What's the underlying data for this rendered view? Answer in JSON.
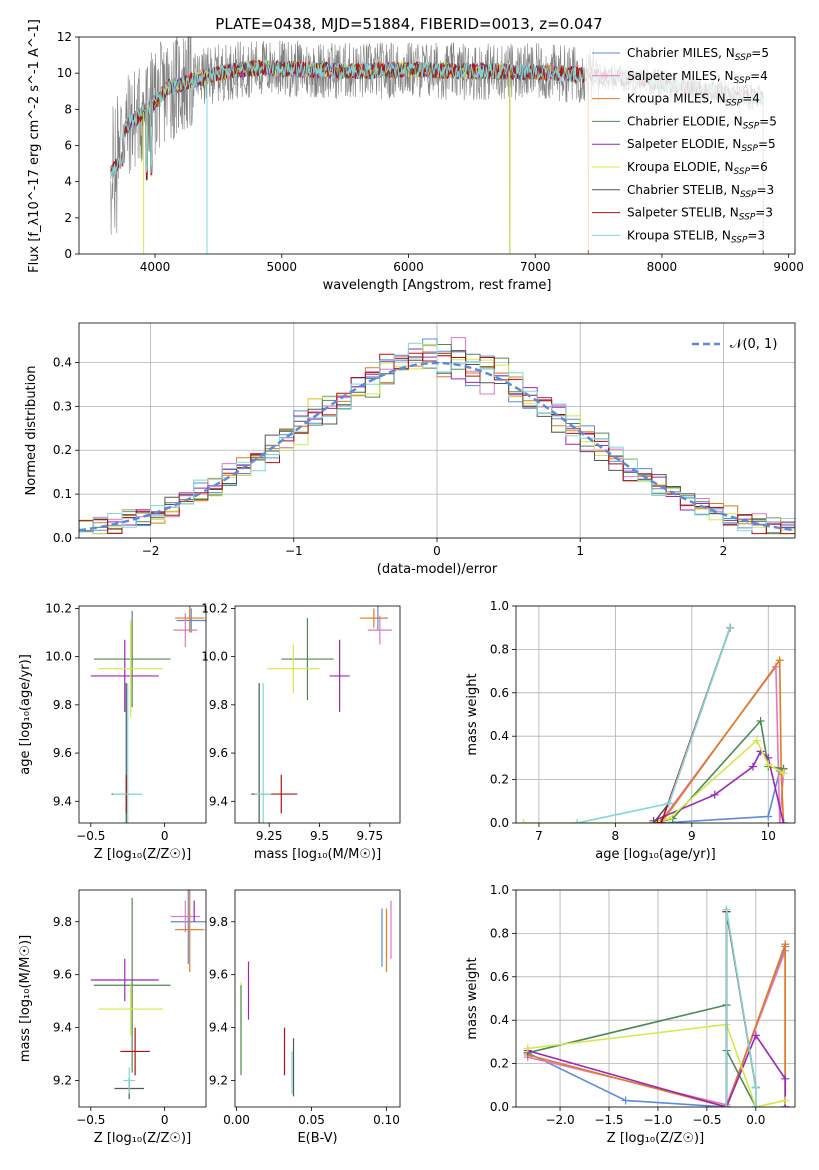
{
  "figure": {
    "title": "PLATE=0438, MJD=51884, FIBERID=0013, z=0.047"
  },
  "colors": {
    "Chabrier MILES": "#5b8bd9",
    "Salpeter MILES": "#e377c2",
    "Kroupa MILES": "#e07b21",
    "Chabrier ELODIE": "#4e8a57",
    "Salpeter ELODIE": "#9b27b8",
    "Kroupa ELODIE": "#d4e84a",
    "Chabrier STELIB": "#555555",
    "Salpeter STELIB": "#b01010",
    "Kroupa STELIB": "#7fd8d8"
  },
  "chart_data": [
    {
      "id": "spectrum",
      "type": "line",
      "title": "PLATE=0438, MJD=51884, FIBERID=0013, z=0.047",
      "xlabel": "wavelength [Angstrom, rest frame]",
      "ylabel": "Flux [f_λ10^-17 erg cm^-2 s^-1 A^-1]",
      "xlim": [
        3400,
        9050
      ],
      "ylim": [
        0,
        12
      ],
      "xticks": [
        4000,
        5000,
        6000,
        7000,
        8000,
        9000
      ],
      "yticks": [
        0,
        2,
        4,
        6,
        8,
        10,
        12
      ],
      "legend": {
        "placement": "top-right",
        "entries": [
          {
            "label": "Chabrier MILES, N",
            "sub": "SSP",
            "tail": "=5",
            "series": "Chabrier MILES"
          },
          {
            "label": "Salpeter MILES, N",
            "sub": "SSP",
            "tail": "=4",
            "series": "Salpeter MILES"
          },
          {
            "label": "Kroupa MILES, N",
            "sub": "SSP",
            "tail": "=4",
            "series": "Kroupa MILES"
          },
          {
            "label": "Chabrier ELODIE, N",
            "sub": "SSP",
            "tail": "=5",
            "series": "Chabrier ELODIE"
          },
          {
            "label": "Salpeter ELODIE, N",
            "sub": "SSP",
            "tail": "=5",
            "series": "Salpeter ELODIE"
          },
          {
            "label": "Kroupa ELODIE, N",
            "sub": "SSP",
            "tail": "=6",
            "series": "Kroupa ELODIE"
          },
          {
            "label": "Chabrier STELIB, N",
            "sub": "SSP",
            "tail": "=3",
            "series": "Chabrier STELIB"
          },
          {
            "label": "Salpeter STELIB, N",
            "sub": "SSP",
            "tail": "=3",
            "series": "Salpeter STELIB"
          },
          {
            "label": "Kroupa STELIB, N",
            "sub": "SSP",
            "tail": "=3",
            "series": "Kroupa STELIB"
          }
        ]
      },
      "data_series": {
        "name": "data",
        "color": "#808080",
        "x_range": [
          3650,
          8800
        ]
      },
      "model_continuum": {
        "x": [
          3650,
          3800,
          3900,
          4000,
          4100,
          4300,
          4500,
          4800,
          5200,
          5600,
          6000,
          6400,
          6800,
          7200,
          7400,
          7800,
          8200,
          8600,
          8800
        ],
        "y": [
          6.0,
          7.2,
          7.8,
          8.4,
          9.2,
          9.6,
          10.0,
          10.3,
          10.2,
          10.1,
          10.2,
          10.1,
          10.1,
          10.0,
          9.9,
          9.7,
          9.2,
          8.8,
          8.6
        ]
      },
      "model_extents": [
        {
          "series": "Chabrier MILES",
          "x_range": [
            3650,
            7420
          ]
        },
        {
          "series": "Salpeter MILES",
          "x_range": [
            3650,
            7420
          ]
        },
        {
          "series": "Kroupa MILES",
          "x_range": [
            3650,
            7420
          ]
        },
        {
          "series": "Chabrier ELODIE",
          "x_range": [
            3900,
            6800
          ]
        },
        {
          "series": "Salpeter ELODIE",
          "x_range": [
            3900,
            6800
          ]
        },
        {
          "series": "Kroupa ELODIE",
          "x_range": [
            3900,
            6800
          ]
        },
        {
          "series": "Chabrier STELIB",
          "x_range": [
            3650,
            8800
          ]
        },
        {
          "series": "Salpeter STELIB",
          "x_range": [
            3650,
            8800
          ]
        },
        {
          "series": "Kroupa STELIB",
          "x_range": [
            3650,
            8800
          ]
        }
      ]
    },
    {
      "id": "residuals",
      "type": "histogram",
      "xlabel": "(data-model)/error",
      "ylabel": "Normed distribution",
      "xlim": [
        -2.5,
        2.5
      ],
      "ylim": [
        0,
        0.49
      ],
      "xticks": [
        -2,
        -1,
        0,
        1,
        2
      ],
      "yticks": [
        0.0,
        0.1,
        0.2,
        0.3,
        0.4
      ],
      "grid": true,
      "bin_width": 0.1,
      "legend": {
        "placement": "top-right",
        "label": "𝒩(0, 1)"
      },
      "reference_curve": {
        "name": "𝒩(0, 1)",
        "style": "dashed",
        "color": "#5b8bd9"
      }
    },
    {
      "id": "age-vs-Z",
      "type": "errorbar",
      "xlabel": "Z [log₁₀(Z/Z☉)]",
      "ylabel": "age  [log₁₀(age/yr)]",
      "xlim": [
        -0.58,
        0.28
      ],
      "ylim": [
        9.31,
        10.21
      ],
      "xticks": [
        -0.5,
        0.0
      ],
      "yticks": [
        9.4,
        9.6,
        9.8,
        10.0,
        10.2
      ],
      "points": [
        {
          "series": "Chabrier ELODIE",
          "x": -0.22,
          "xerr": 0.26,
          "y": 9.99,
          "yerr": 0.2
        },
        {
          "series": "Salpeter ELODIE",
          "x": -0.27,
          "xerr": 0.23,
          "y": 9.92,
          "yerr": 0.15
        },
        {
          "series": "Kroupa ELODIE",
          "x": -0.23,
          "xerr": 0.22,
          "y": 9.95,
          "yerr": 0.2
        },
        {
          "series": "Chabrier STELIB",
          "x": -0.26,
          "xerr": 0.1,
          "y": 9.43,
          "yerr": 0.46
        },
        {
          "series": "Salpeter STELIB",
          "x": -0.26,
          "xerr": 0.01,
          "y": 9.43,
          "yerr": 0.08
        },
        {
          "series": "Kroupa STELIB",
          "x": -0.25,
          "xerr": 0.1,
          "y": 9.43,
          "yerr": 0.46
        },
        {
          "series": "Chabrier MILES",
          "x": 0.18,
          "xerr": 0.1,
          "y": 10.15,
          "yerr": 0.05
        },
        {
          "series": "Salpeter MILES",
          "x": 0.14,
          "xerr": 0.08,
          "y": 10.11,
          "yerr": 0.07
        },
        {
          "series": "Kroupa MILES",
          "x": 0.17,
          "xerr": 0.1,
          "y": 10.16,
          "yerr": 0.06
        }
      ]
    },
    {
      "id": "age-vs-mass",
      "type": "errorbar",
      "xlabel": "mass [log₁₀(M/M☉)]",
      "ylabel": "",
      "xlim": [
        9.08,
        9.9
      ],
      "ylim": [
        9.31,
        10.21
      ],
      "xticks": [
        9.25,
        9.5,
        9.75
      ],
      "yticks": [
        9.4,
        9.6,
        9.8,
        10.0,
        10.2
      ],
      "points": [
        {
          "series": "Chabrier ELODIE",
          "x": 9.44,
          "xerr": 0.13,
          "y": 9.99,
          "yerr": 0.17
        },
        {
          "series": "Salpeter ELODIE",
          "x": 9.6,
          "xerr": 0.05,
          "y": 9.92,
          "yerr": 0.15
        },
        {
          "series": "Kroupa ELODIE",
          "x": 9.37,
          "xerr": 0.13,
          "y": 9.95,
          "yerr": 0.1
        },
        {
          "series": "Chabrier STELIB",
          "x": 9.2,
          "xerr": 0.04,
          "y": 9.43,
          "yerr": 0.46
        },
        {
          "series": "Salpeter STELIB",
          "x": 9.31,
          "xerr": 0.08,
          "y": 9.43,
          "yerr": 0.08
        },
        {
          "series": "Kroupa STELIB",
          "x": 9.22,
          "xerr": 0.04,
          "y": 9.43,
          "yerr": 0.46
        },
        {
          "series": "Chabrier MILES",
          "x": 9.79,
          "xerr": 0.05,
          "y": 10.16,
          "yerr": 0.05
        },
        {
          "series": "Salpeter MILES",
          "x": 9.8,
          "xerr": 0.06,
          "y": 10.11,
          "yerr": 0.06
        },
        {
          "series": "Kroupa MILES",
          "x": 9.77,
          "xerr": 0.07,
          "y": 10.16,
          "yerr": 0.04
        }
      ]
    },
    {
      "id": "weight-vs-age",
      "type": "line",
      "xlabel": "age  [log₁₀(age/yr)]",
      "ylabel": "mass weight",
      "xlim": [
        6.7,
        10.35
      ],
      "ylim": [
        0,
        1.0
      ],
      "xticks": [
        7,
        8,
        9,
        10
      ],
      "yticks": [
        0.0,
        0.2,
        0.4,
        0.6,
        0.8,
        1.0
      ],
      "grid": true,
      "series": [
        {
          "name": "Chabrier MILES",
          "x": [
            8.6,
            10.0,
            10.15,
            10.2
          ],
          "y": [
            0.0,
            0.03,
            0.24,
            0.25
          ]
        },
        {
          "name": "Salpeter MILES",
          "x": [
            8.6,
            10.1,
            10.15,
            10.2
          ],
          "y": [
            0.01,
            0.72,
            0.0,
            0.23
          ]
        },
        {
          "name": "Kroupa MILES",
          "x": [
            8.6,
            10.15,
            10.17,
            10.2
          ],
          "y": [
            0.0,
            0.75,
            0.24,
            0.0
          ]
        },
        {
          "name": "Chabrier ELODIE",
          "x": [
            8.5,
            8.75,
            9.9,
            10.0,
            10.2
          ],
          "y": [
            0.0,
            0.02,
            0.47,
            0.26,
            0.25
          ]
        },
        {
          "name": "Salpeter ELODIE",
          "x": [
            8.5,
            9.3,
            9.8,
            9.9,
            10.0,
            10.2
          ],
          "y": [
            0.01,
            0.13,
            0.26,
            0.33,
            0.3,
            0.0
          ]
        },
        {
          "name": "Kroupa ELODIE",
          "x": [
            6.8,
            7.5,
            8.5,
            8.7,
            9.85,
            10.0,
            10.2
          ],
          "y": [
            0.0,
            0.0,
            0.0,
            0.02,
            0.38,
            0.27,
            0.23
          ]
        },
        {
          "name": "Chabrier STELIB",
          "x": [
            8.5,
            8.7,
            9.5
          ],
          "y": [
            0.0,
            0.09,
            0.9
          ]
        },
        {
          "name": "Salpeter STELIB",
          "x": [
            8.55,
            8.6,
            9.5
          ],
          "y": [
            0.0,
            0.0,
            0.9
          ]
        },
        {
          "name": "Kroupa STELIB",
          "x": [
            7.5,
            8.7,
            9.5
          ],
          "y": [
            0.0,
            0.09,
            0.9
          ]
        }
      ]
    },
    {
      "id": "mass-vs-Z",
      "type": "errorbar",
      "xlabel": "Z [log₁₀(Z/Z☉)]",
      "ylabel": "mass [log₁₀(M/M☉)]",
      "xlim": [
        -0.58,
        0.28
      ],
      "ylim": [
        9.1,
        9.92
      ],
      "xticks": [
        -0.5,
        0.0
      ],
      "yticks": [
        9.2,
        9.4,
        9.6,
        9.8
      ],
      "points": [
        {
          "series": "Chabrier ELODIE",
          "x": -0.22,
          "xerr": 0.26,
          "y": 9.56,
          "yerr": 0.33
        },
        {
          "series": "Salpeter ELODIE",
          "x": -0.27,
          "xerr": 0.23,
          "y": 9.58,
          "yerr": 0.08
        },
        {
          "series": "Kroupa ELODIE",
          "x": -0.23,
          "xerr": 0.22,
          "y": 9.47,
          "yerr": 0.1
        },
        {
          "series": "Chabrier STELIB",
          "x": -0.24,
          "xerr": 0.1,
          "y": 9.17,
          "yerr": 0.04
        },
        {
          "series": "Salpeter STELIB",
          "x": -0.2,
          "xerr": 0.1,
          "y": 9.31,
          "yerr": 0.09
        },
        {
          "series": "Kroupa STELIB",
          "x": -0.24,
          "xerr": 0.04,
          "y": 9.2,
          "yerr": 0.05
        },
        {
          "series": "Chabrier MILES",
          "x": 0.16,
          "xerr": 0.12,
          "y": 9.8,
          "yerr": 0.16
        },
        {
          "series": "Salpeter MILES",
          "x": 0.14,
          "xerr": 0.1,
          "y": 9.82,
          "yerr": 0.06
        },
        {
          "series": "Kroupa MILES",
          "x": 0.17,
          "xerr": 0.1,
          "y": 9.77,
          "yerr": 0.16
        },
        {
          "series": "Salpeter ELODIE",
          "x": 0.2,
          "xerr": 0.0,
          "y": 9.84,
          "yerr": 0.04
        }
      ]
    },
    {
      "id": "mass-vs-EBV",
      "type": "errorbar",
      "xlabel": "E(B-V)",
      "ylabel": "",
      "xlim": [
        -0.001,
        0.109
      ],
      "ylim": [
        9.1,
        9.92
      ],
      "xticks": [
        0.0,
        0.05,
        0.1
      ],
      "xticklabels": [
        "0.00",
        "0.05",
        "0.10"
      ],
      "yticks": [
        9.2,
        9.4,
        9.6,
        9.8
      ],
      "points": [
        {
          "series": "Kroupa ELODIE",
          "x": 0.003,
          "y": 9.4,
          "yerr": 0.17
        },
        {
          "series": "Chabrier ELODIE",
          "x": 0.003,
          "y": 9.39,
          "yerr": 0.17
        },
        {
          "series": "Salpeter ELODIE",
          "x": 0.008,
          "y": 9.54,
          "yerr": 0.11
        },
        {
          "series": "Salpeter STELIB",
          "x": 0.032,
          "y": 9.31,
          "yerr": 0.09
        },
        {
          "series": "Chabrier STELIB",
          "x": 0.038,
          "y": 9.25,
          "yerr": 0.11
        },
        {
          "series": "Kroupa STELIB",
          "x": 0.037,
          "y": 9.23,
          "yerr": 0.08
        },
        {
          "series": "Chabrier MILES",
          "x": 0.097,
          "y": 9.74,
          "yerr": 0.11
        },
        {
          "series": "Kroupa MILES",
          "x": 0.1,
          "y": 9.73,
          "yerr": 0.12
        },
        {
          "series": "Salpeter MILES",
          "x": 0.103,
          "y": 9.77,
          "yerr": 0.11
        }
      ]
    },
    {
      "id": "weight-vs-Z",
      "type": "line",
      "xlabel": "Z [log₁₀(Z/Z☉)]",
      "ylabel": "mass weight",
      "xlim": [
        -2.45,
        0.4
      ],
      "ylim": [
        0,
        1.0
      ],
      "xticks": [
        -2.0,
        -1.5,
        -1.0,
        -0.5,
        0.0
      ],
      "xticklabels": [
        "−2.0",
        "−1.5",
        "−1.0",
        "−0.5",
        "0.0"
      ],
      "yticks": [
        0.0,
        0.2,
        0.4,
        0.6,
        0.8,
        1.0
      ],
      "grid": true,
      "series": [
        {
          "name": "Chabrier MILES",
          "x": [
            -2.33,
            -1.33,
            -0.3,
            0.3,
            0.3
          ],
          "y": [
            0.25,
            0.03,
            0.0,
            0.74,
            0.0
          ]
        },
        {
          "name": "Salpeter MILES",
          "x": [
            -2.33,
            -0.3,
            0.3,
            0.3
          ],
          "y": [
            0.23,
            0.01,
            0.72,
            0.0
          ]
        },
        {
          "name": "Kroupa MILES",
          "x": [
            -2.33,
            -0.3,
            0.3,
            0.3
          ],
          "y": [
            0.24,
            0.0,
            0.75,
            0.0
          ]
        },
        {
          "name": "Chabrier ELODIE",
          "x": [
            -2.33,
            -0.3,
            -0.3,
            0.0
          ],
          "y": [
            0.25,
            0.47,
            0.26,
            0.0
          ]
        },
        {
          "name": "Salpeter ELODIE",
          "x": [
            -2.33,
            -0.3,
            0.0,
            0.3,
            0.3
          ],
          "y": [
            0.26,
            0.0,
            0.33,
            0.13,
            0.0
          ]
        },
        {
          "name": "Kroupa ELODIE",
          "x": [
            -2.33,
            -0.3,
            0.0,
            0.3
          ],
          "y": [
            0.27,
            0.38,
            0.0,
            0.03
          ]
        },
        {
          "name": "Chabrier STELIB",
          "x": [
            -0.3,
            -0.3,
            0.0,
            0.0
          ],
          "y": [
            0.0,
            0.9,
            0.09,
            0.0
          ]
        },
        {
          "name": "Salpeter STELIB",
          "x": [
            -0.3,
            -0.3,
            0.0
          ],
          "y": [
            0.0,
            0.9,
            0.09
          ]
        },
        {
          "name": "Kroupa STELIB",
          "x": [
            -0.3,
            -0.3,
            0.0,
            0.0
          ],
          "y": [
            0.0,
            0.91,
            0.09,
            0.0
          ]
        }
      ]
    }
  ]
}
